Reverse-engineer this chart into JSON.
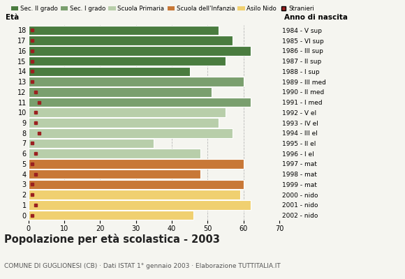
{
  "ages": [
    18,
    17,
    16,
    15,
    14,
    13,
    12,
    11,
    10,
    9,
    8,
    7,
    6,
    5,
    4,
    3,
    2,
    1,
    0
  ],
  "years": [
    "1984 - V sup",
    "1985 - VI sup",
    "1986 - III sup",
    "1987 - II sup",
    "1988 - I sup",
    "1989 - III med",
    "1990 - II med",
    "1991 - I med",
    "1992 - V el",
    "1993 - IV el",
    "1994 - III el",
    "1995 - II el",
    "1996 - I el",
    "1997 - mat",
    "1998 - mat",
    "1999 - mat",
    "2000 - nido",
    "2001 - nido",
    "2002 - nido"
  ],
  "values": [
    53,
    57,
    62,
    55,
    45,
    60,
    51,
    62,
    55,
    53,
    57,
    35,
    48,
    60,
    48,
    60,
    59,
    62,
    46
  ],
  "stranieri": [
    1,
    1,
    1,
    1,
    1,
    1,
    2,
    3,
    2,
    2,
    3,
    1,
    2,
    1,
    2,
    1,
    1,
    2,
    1
  ],
  "bar_colors": [
    "#4a7c3f",
    "#4a7c3f",
    "#4a7c3f",
    "#4a7c3f",
    "#4a7c3f",
    "#7a9f6e",
    "#7a9f6e",
    "#7a9f6e",
    "#b8ceaa",
    "#b8ceaa",
    "#b8ceaa",
    "#b8ceaa",
    "#b8ceaa",
    "#c87837",
    "#c87837",
    "#c87837",
    "#f0d070",
    "#f0d070",
    "#f0d070"
  ],
  "categories": [
    "Sec. II grado",
    "Sec. I grado",
    "Scuola Primaria",
    "Scuola dell'Infanzia",
    "Asilo Nido",
    "Stranieri"
  ],
  "category_colors": [
    "#4a7c3f",
    "#7a9f6e",
    "#b8ceaa",
    "#c87837",
    "#f0d070",
    "#9b2020"
  ],
  "stranieri_color": "#9b2020",
  "title": "Popolazione per età scolastica - 2003",
  "subtitle": "COMUNE DI GUGLIONESI (CB) · Dati ISTAT 1° gennaio 2003 · Elaborazione TUTTITALIA.IT",
  "xlabel_eta": "Età",
  "xlabel_anno": "Anno di nascita",
  "xlim": [
    0,
    70
  ],
  "background_color": "#f5f5f0",
  "bg_color": "#f5f5f0"
}
